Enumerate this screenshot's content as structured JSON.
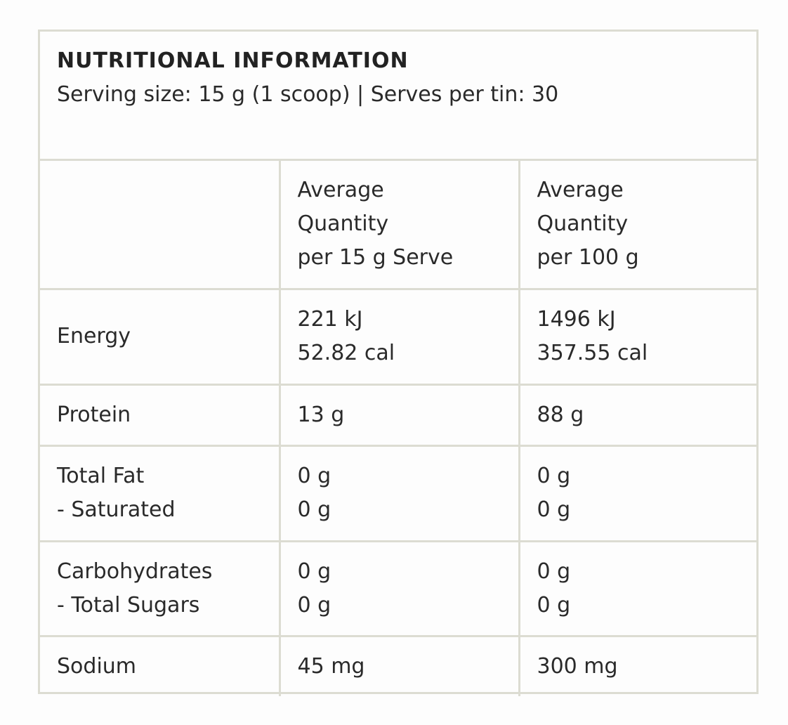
{
  "header": {
    "title": "NUTRITIONAL INFORMATION",
    "subtitle": "Serving size: 15 g (1 scoop) | Serves per tin: 30"
  },
  "table": {
    "columns": [
      {
        "lines": []
      },
      {
        "lines": [
          "Average",
          "Quantity",
          "per 15 g Serve"
        ]
      },
      {
        "lines": [
          "Average",
          "Quantity",
          "per 100 g"
        ]
      }
    ],
    "rows": [
      {
        "label": [
          "Energy"
        ],
        "per_serve": [
          "221 kJ",
          "52.82 cal"
        ],
        "per_100g": [
          "1496 kJ",
          "357.55 cal"
        ]
      },
      {
        "label": [
          "Protein"
        ],
        "per_serve": [
          "13 g"
        ],
        "per_100g": [
          "88 g"
        ]
      },
      {
        "label": [
          "Total Fat",
          "- Saturated"
        ],
        "per_serve": [
          "0 g",
          "0 g"
        ],
        "per_100g": [
          "0 g",
          "0 g"
        ]
      },
      {
        "label": [
          "Carbohydrates",
          "- Total Sugars"
        ],
        "per_serve": [
          "0 g",
          "0 g"
        ],
        "per_100g": [
          "0 g",
          "0 g"
        ]
      },
      {
        "label": [
          "Sodium"
        ],
        "per_serve": [
          "45 mg"
        ],
        "per_100g": [
          "300 mg"
        ]
      }
    ]
  },
  "colors": {
    "border": "#dcdcd2",
    "text": "#2a2a2a",
    "background": "#fdfdfd"
  }
}
